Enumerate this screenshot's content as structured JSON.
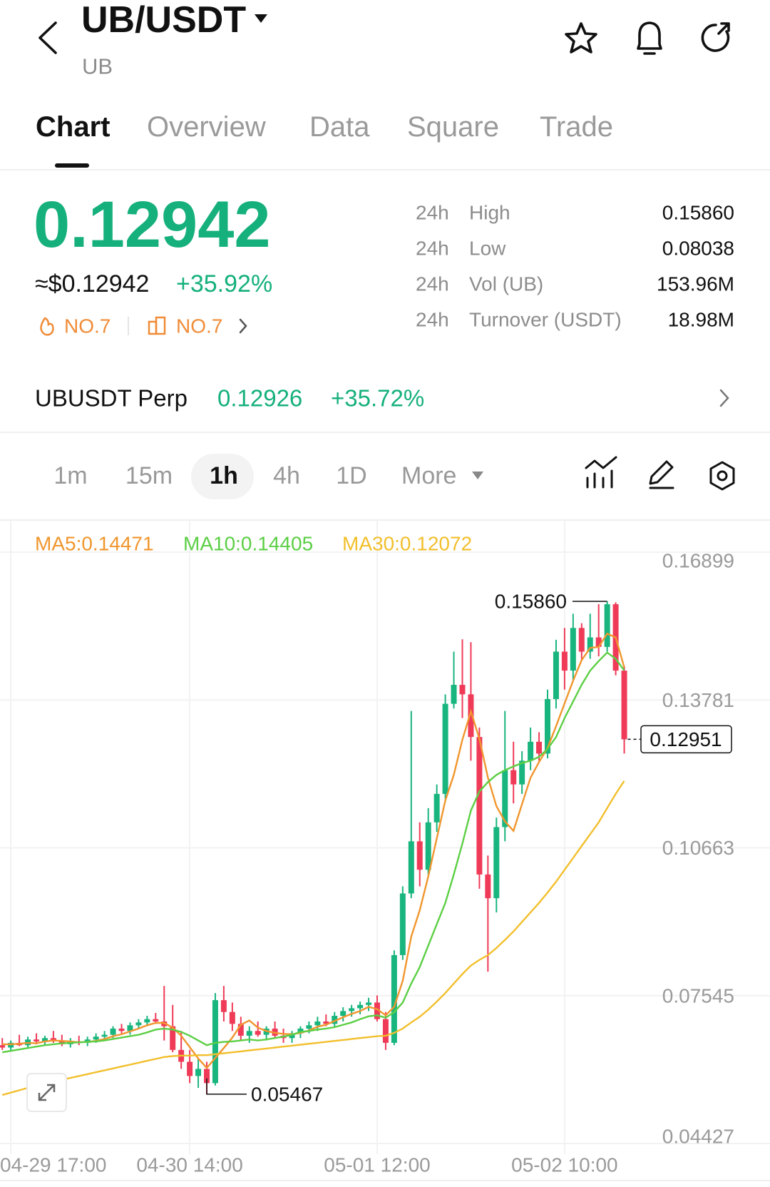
{
  "header": {
    "title": "UB/USDT",
    "subtitle": "UB"
  },
  "tabs": [
    "Chart",
    "Overview",
    "Data",
    "Square",
    "Trade"
  ],
  "ticker": {
    "price": "0.12942",
    "usd_price": "≈$0.12942",
    "change": "+35.92%",
    "ranks": [
      "NO.7",
      "NO.7"
    ]
  },
  "stats": [
    [
      "24h",
      "High",
      "0.15860"
    ],
    [
      "24h",
      "Low",
      "0.08038"
    ],
    [
      "24h",
      "Vol (UB)",
      "153.96M"
    ],
    [
      "24h",
      "Turnover (USDT)",
      "18.98M"
    ]
  ],
  "perp": {
    "name": "UBUSDT Perp",
    "price": "0.12926",
    "change": "+35.72%"
  },
  "intervals": [
    "1m",
    "15m",
    "1h",
    "4h",
    "1D",
    "More"
  ],
  "chart_data": {
    "type": "candlestick",
    "categories": [
      null,
      "04-29 17:00",
      null,
      null,
      null,
      null,
      null,
      null,
      null,
      null,
      null,
      null,
      null,
      null,
      null,
      null,
      null,
      null,
      null,
      null,
      null,
      null,
      "04-30 14:00",
      null,
      null,
      null,
      null,
      null,
      null,
      null,
      null,
      null,
      null,
      null,
      null,
      null,
      null,
      null,
      null,
      null,
      null,
      null,
      null,
      null,
      "05-01 12:00",
      null,
      null,
      null,
      null,
      null,
      null,
      null,
      null,
      null,
      null,
      null,
      null,
      null,
      null,
      null,
      null,
      null,
      null,
      null,
      null,
      null,
      "05-02 10:00",
      null,
      null,
      null,
      null,
      null,
      null,
      null
    ],
    "open": [
      0.065,
      0.0645,
      0.0655,
      0.065,
      0.0662,
      0.0658,
      0.0665,
      0.066,
      0.0652,
      0.0658,
      0.0655,
      0.0662,
      0.0668,
      0.0672,
      0.0685,
      0.068,
      0.0692,
      0.0698,
      0.0705,
      0.07,
      0.069,
      0.064,
      0.0615,
      0.0585,
      0.06,
      0.057,
      0.0745,
      0.072,
      0.0695,
      0.067,
      0.068,
      0.0672,
      0.0685,
      0.067,
      0.0665,
      0.0675,
      0.0685,
      0.0692,
      0.07,
      0.0695,
      0.0712,
      0.0722,
      0.0728,
      0.0735,
      0.074,
      0.0705,
      0.0655,
      0.084,
      0.097,
      0.108,
      0.102,
      0.112,
      0.118,
      0.137,
      0.141,
      0.139,
      0.13,
      0.101,
      0.096,
      0.111,
      0.123,
      0.12,
      0.125,
      0.129,
      0.1265,
      0.138,
      0.148,
      0.144,
      0.153,
      0.148,
      0.151,
      0.149,
      0.158,
      0.144
    ],
    "high": [
      0.0665,
      0.066,
      0.0672,
      0.0668,
      0.0675,
      0.067,
      0.068,
      0.0672,
      0.0665,
      0.067,
      0.0668,
      0.0675,
      0.068,
      0.069,
      0.0695,
      0.0698,
      0.0705,
      0.0712,
      0.0718,
      0.0775,
      0.0735,
      0.068,
      0.064,
      0.062,
      0.0615,
      0.076,
      0.0775,
      0.074,
      0.071,
      0.069,
      0.07,
      0.069,
      0.07,
      0.0685,
      0.068,
      0.069,
      0.07,
      0.071,
      0.0715,
      0.072,
      0.073,
      0.0735,
      0.0742,
      0.075,
      0.0755,
      0.072,
      0.085,
      0.0985,
      0.1355,
      0.112,
      0.115,
      0.12,
      0.139,
      0.148,
      0.1506,
      0.15,
      0.132,
      0.105,
      0.113,
      0.1355,
      0.129,
      0.127,
      0.132,
      0.131,
      0.14,
      0.1505,
      0.153,
      0.156,
      0.154,
      0.156,
      0.158,
      0.1586,
      0.1584,
      0.145
    ],
    "low": [
      0.064,
      0.0638,
      0.0648,
      0.0645,
      0.0652,
      0.065,
      0.0655,
      0.0648,
      0.0645,
      0.065,
      0.0648,
      0.0655,
      0.066,
      0.0665,
      0.0675,
      0.0672,
      0.0685,
      0.069,
      0.0695,
      0.066,
      0.0635,
      0.06,
      0.057,
      0.056,
      0.05467,
      0.0565,
      0.07,
      0.068,
      0.066,
      0.0655,
      0.0668,
      0.066,
      0.0665,
      0.0655,
      0.0655,
      0.0665,
      0.0675,
      0.068,
      0.069,
      0.0688,
      0.07,
      0.071,
      0.0715,
      0.0722,
      0.07,
      0.064,
      0.065,
      0.083,
      0.096,
      0.0985,
      0.101,
      0.11,
      0.117,
      0.136,
      0.134,
      0.125,
      0.098,
      0.0805,
      0.093,
      0.108,
      0.116,
      0.118,
      0.123,
      0.125,
      0.1255,
      0.136,
      0.14,
      0.142,
      0.146,
      0.1465,
      0.147,
      0.148,
      0.143,
      0.1265
    ],
    "close": [
      0.0645,
      0.0655,
      0.065,
      0.0662,
      0.0658,
      0.0665,
      0.066,
      0.0652,
      0.0658,
      0.0655,
      0.0662,
      0.0668,
      0.0672,
      0.0685,
      0.068,
      0.0692,
      0.0698,
      0.0705,
      0.07,
      0.069,
      0.064,
      0.0615,
      0.0585,
      0.06,
      0.057,
      0.0745,
      0.072,
      0.0695,
      0.067,
      0.068,
      0.0672,
      0.0685,
      0.067,
      0.0665,
      0.0675,
      0.0685,
      0.0692,
      0.07,
      0.0695,
      0.0712,
      0.0722,
      0.0728,
      0.0735,
      0.074,
      0.0705,
      0.0655,
      0.084,
      0.097,
      0.108,
      0.102,
      0.112,
      0.118,
      0.137,
      0.141,
      0.139,
      0.13,
      0.101,
      0.096,
      0.111,
      0.123,
      0.12,
      0.125,
      0.129,
      0.1265,
      0.138,
      0.148,
      0.144,
      0.153,
      0.148,
      0.151,
      0.149,
      0.158,
      0.144,
      0.12951
    ],
    "up_color": "#19b57e",
    "down_color": "#ef3b58",
    "series": [
      {
        "name": "MA5:0.14471",
        "color": "#f0962e",
        "values": [
          0.0652,
          0.0652,
          0.0653,
          0.0655,
          0.0654,
          0.0658,
          0.066,
          0.0659,
          0.0658,
          0.0656,
          0.0657,
          0.0659,
          0.0663,
          0.0669,
          0.0673,
          0.0679,
          0.0685,
          0.0692,
          0.0697,
          0.0697,
          0.0687,
          0.067,
          0.0646,
          0.0622,
          0.0602,
          0.0623,
          0.0644,
          0.0666,
          0.0693,
          0.0702,
          0.0687,
          0.068,
          0.0676,
          0.0674,
          0.0673,
          0.0676,
          0.0681,
          0.0689,
          0.0693,
          0.0701,
          0.0709,
          0.0716,
          0.0722,
          0.0731,
          0.0726,
          0.0713,
          0.0731,
          0.0786,
          0.0879,
          0.0935,
          0.1006,
          0.1086,
          0.1166,
          0.122,
          0.1294,
          0.1354,
          0.1296,
          0.1214,
          0.1154,
          0.1122,
          0.1102,
          0.1158,
          0.1214,
          0.1247,
          0.1277,
          0.1323,
          0.1371,
          0.1419,
          0.1462,
          0.1488,
          0.149,
          0.1518,
          0.151,
          0.14471
        ]
      },
      {
        "name": "MA10:0.14405",
        "color": "#5ccf45",
        "values": [
          0.0635,
          0.0638,
          0.0641,
          0.0644,
          0.0647,
          0.065,
          0.0652,
          0.0654,
          0.0655,
          0.0656,
          0.0657,
          0.0658,
          0.066,
          0.0663,
          0.0666,
          0.0669,
          0.0672,
          0.0677,
          0.0683,
          0.0685,
          0.0683,
          0.0678,
          0.067,
          0.066,
          0.065,
          0.0655,
          0.0657,
          0.0658,
          0.066,
          0.0662,
          0.066,
          0.0662,
          0.0665,
          0.0668,
          0.0672,
          0.0678,
          0.068,
          0.0683,
          0.0685,
          0.0688,
          0.0693,
          0.0698,
          0.0705,
          0.0711,
          0.0713,
          0.0708,
          0.072,
          0.074,
          0.078,
          0.0815,
          0.086,
          0.0905,
          0.095,
          0.101,
          0.1075,
          0.1145,
          0.1185,
          0.1205,
          0.122,
          0.123,
          0.1238,
          0.1245,
          0.125,
          0.1258,
          0.1275,
          0.13,
          0.134,
          0.1375,
          0.141,
          0.144,
          0.146,
          0.1478,
          0.1465,
          0.14405
        ]
      },
      {
        "name": "MA30:0.12072",
        "color": "#f2bf2c",
        "values": [
          0.0545,
          0.055,
          0.0555,
          0.056,
          0.0565,
          0.0569,
          0.0573,
          0.0577,
          0.0581,
          0.0585,
          0.0589,
          0.0593,
          0.0597,
          0.0601,
          0.0605,
          0.0609,
          0.0613,
          0.0617,
          0.0621,
          0.0625,
          0.0627,
          0.0628,
          0.0628,
          0.0629,
          0.0629,
          0.0631,
          0.0633,
          0.0635,
          0.0637,
          0.0639,
          0.0641,
          0.0643,
          0.0645,
          0.0647,
          0.0649,
          0.0651,
          0.0653,
          0.0655,
          0.0657,
          0.0659,
          0.0661,
          0.0663,
          0.0665,
          0.0667,
          0.0669,
          0.067,
          0.0676,
          0.0685,
          0.0698,
          0.071,
          0.0725,
          0.0742,
          0.076,
          0.078,
          0.08,
          0.0818,
          0.083,
          0.084,
          0.0855,
          0.0872,
          0.089,
          0.091,
          0.093,
          0.095,
          0.0972,
          0.0995,
          0.102,
          0.1045,
          0.107,
          0.1095,
          0.112,
          0.115,
          0.118,
          0.12072
        ]
      }
    ],
    "ylim": [
      0.04427,
      0.16899
    ],
    "yticks": [
      0.16899,
      0.13781,
      0.10663,
      0.07545,
      0.04427
    ],
    "grid": true,
    "high_label": {
      "value": 0.1586,
      "label": "0.15860"
    },
    "low_label": 0.05467,
    "last_price": 0.12951
  }
}
